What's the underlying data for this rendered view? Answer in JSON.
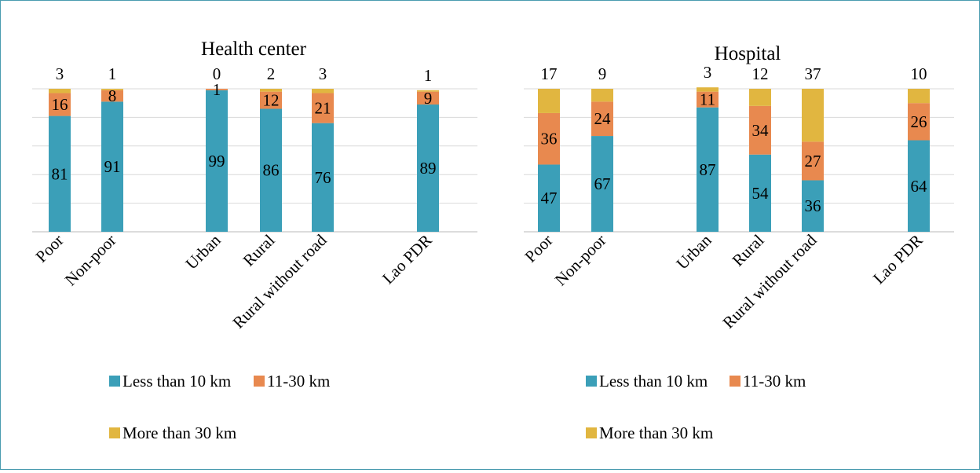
{
  "colors": {
    "less_than_10": "#3b9fb8",
    "between_11_30": "#e8894f",
    "more_than_30": "#e1b640"
  },
  "legend": {
    "less_than_10": "Less than 10 km",
    "between_11_30": "11-30 km",
    "more_than_30": "More than 30 km"
  },
  "chart_data": [
    {
      "type": "bar",
      "stacked": true,
      "title": "Health center",
      "categories": [
        "Poor",
        "Non-poor",
        "Urban",
        "Rural",
        "Rural without road",
        "Lao PDR"
      ],
      "series": [
        {
          "name": "Less than 10 km",
          "values": [
            81,
            91,
            99,
            86,
            76,
            89
          ]
        },
        {
          "name": "11-30 km",
          "values": [
            16,
            8,
            1,
            12,
            21,
            9
          ]
        },
        {
          "name": "More than 30 km",
          "values": [
            3,
            1,
            0,
            2,
            3,
            1
          ]
        }
      ],
      "ylim": [
        0,
        100
      ],
      "grid": true,
      "legend_position": "bottom"
    },
    {
      "type": "bar",
      "stacked": true,
      "title": "Hospital",
      "categories": [
        "Poor",
        "Non-poor",
        "Urban",
        "Rural",
        "Rural without road",
        "Lao PDR"
      ],
      "series": [
        {
          "name": "Less than 10 km",
          "values": [
            47,
            67,
            87,
            54,
            36,
            64
          ]
        },
        {
          "name": "11-30 km",
          "values": [
            36,
            24,
            11,
            34,
            27,
            26
          ]
        },
        {
          "name": "More than 30 km",
          "values": [
            17,
            9,
            3,
            12,
            37,
            10
          ]
        }
      ],
      "ylim": [
        0,
        100
      ],
      "grid": true,
      "legend_position": "bottom"
    }
  ]
}
